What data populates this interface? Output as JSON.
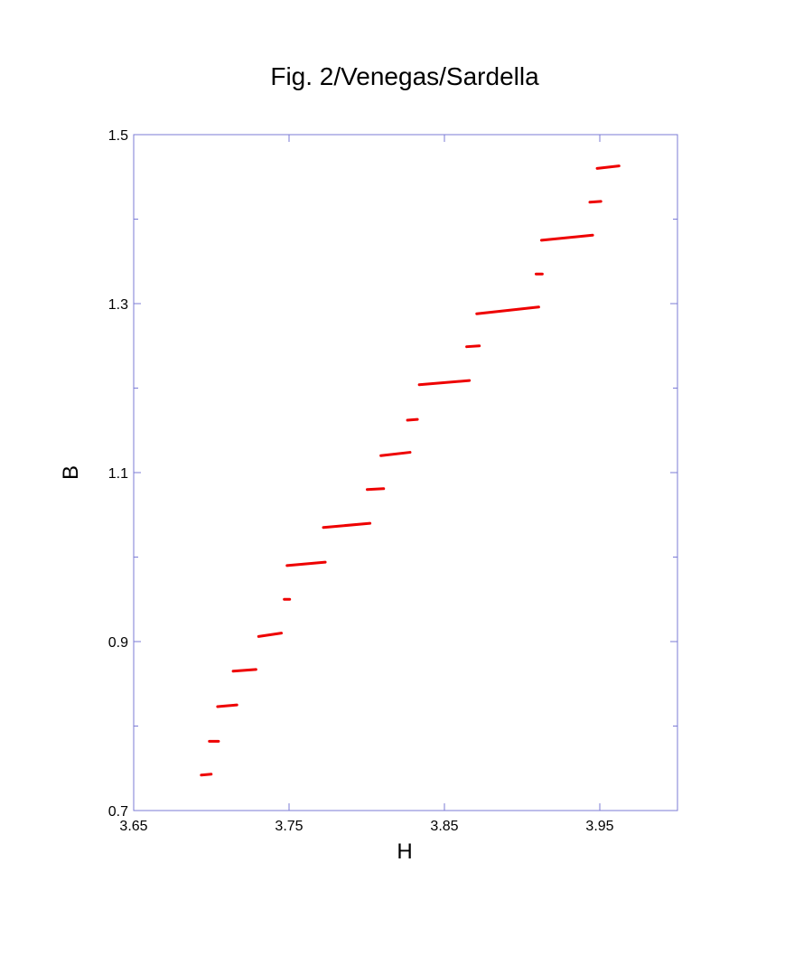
{
  "chart_data": {
    "type": "segments",
    "title": "Fig. 2/Venegas/Sardella",
    "x_label": "H",
    "y_label": "B",
    "xlim": [
      3.65,
      4.0
    ],
    "ylim": [
      0.7,
      1.5
    ],
    "xticks": [
      3.65,
      3.75,
      3.85,
      3.95
    ],
    "yticks": [
      0.7,
      0.9,
      1.1,
      1.3,
      1.5
    ],
    "yminorticks": [
      0.8,
      1.0,
      1.2,
      1.4
    ],
    "axis_color": "#7b7bd6",
    "series": [
      {
        "color": "#ee0000",
        "segments": [
          {
            "x": [
              3.6935,
              3.6999
            ],
            "y": [
              0.742,
              0.743
            ]
          },
          {
            "x": [
              3.6987,
              3.7046
            ],
            "y": [
              0.782,
              0.782
            ]
          },
          {
            "x": [
              3.704,
              3.7164
            ],
            "y": [
              0.823,
              0.825
            ]
          },
          {
            "x": [
              3.714,
              3.7287
            ],
            "y": [
              0.865,
              0.867
            ]
          },
          {
            "x": [
              3.7304,
              3.7451
            ],
            "y": [
              0.906,
              0.91
            ]
          },
          {
            "x": [
              3.7469,
              3.7504
            ],
            "y": [
              0.95,
              0.95
            ]
          },
          {
            "x": [
              3.7487,
              3.7733
            ],
            "y": [
              0.99,
              0.994
            ]
          },
          {
            "x": [
              3.7721,
              3.8021
            ],
            "y": [
              1.035,
              1.04
            ]
          },
          {
            "x": [
              3.8003,
              3.8109
            ],
            "y": [
              1.08,
              1.081
            ]
          },
          {
            "x": [
              3.8091,
              3.8279
            ],
            "y": [
              1.12,
              1.124
            ]
          },
          {
            "x": [
              3.8262,
              3.8326
            ],
            "y": [
              1.162,
              1.163
            ]
          },
          {
            "x": [
              3.8338,
              3.8661
            ],
            "y": [
              1.204,
              1.209
            ]
          },
          {
            "x": [
              3.8643,
              3.8725
            ],
            "y": [
              1.249,
              1.25
            ]
          },
          {
            "x": [
              3.8708,
              3.9107
            ],
            "y": [
              1.288,
              1.296
            ]
          },
          {
            "x": [
              3.909,
              3.913
            ],
            "y": [
              1.335,
              1.335
            ]
          },
          {
            "x": [
              3.9125,
              3.9454
            ],
            "y": [
              1.375,
              1.381
            ]
          },
          {
            "x": [
              3.9436,
              3.9507
            ],
            "y": [
              1.42,
              1.421
            ]
          },
          {
            "x": [
              3.9483,
              3.9624
            ],
            "y": [
              1.46,
              1.463
            ]
          }
        ]
      }
    ]
  }
}
